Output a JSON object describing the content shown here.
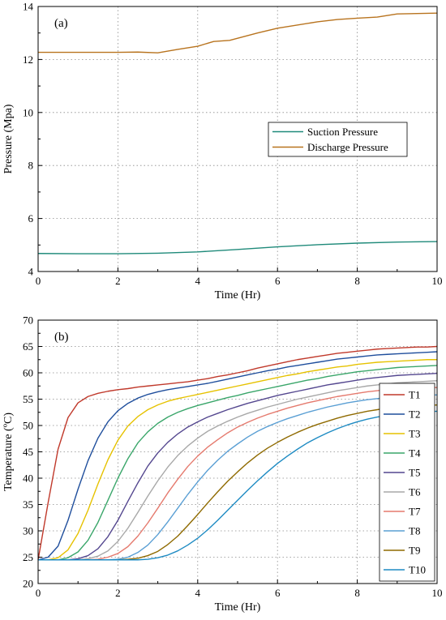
{
  "chart_data": [
    {
      "type": "line",
      "panel_label": "(a)",
      "xlabel": "Time (Hr)",
      "ylabel": "Pressure (Mpa)",
      "xlim": [
        0,
        10
      ],
      "ylim": [
        4,
        14
      ],
      "xticks": [
        0,
        2,
        4,
        6,
        8,
        10
      ],
      "yticks": [
        4,
        6,
        8,
        10,
        12,
        14
      ],
      "grid": true,
      "legend_position": "center-right",
      "series": [
        {
          "name": "Suction Pressure",
          "color": "#1f8a7a",
          "x": [
            0,
            1,
            2,
            3,
            4,
            5,
            6,
            7,
            8,
            9,
            10
          ],
          "y": [
            4.68,
            4.67,
            4.67,
            4.69,
            4.74,
            4.83,
            4.93,
            5.01,
            5.07,
            5.11,
            5.13
          ]
        },
        {
          "name": "Discharge Pressure",
          "color": "#b8731e",
          "x": [
            0,
            1,
            2,
            2.5,
            3,
            3.5,
            4,
            4.4,
            4.8,
            5.5,
            6,
            7,
            7.5,
            8,
            8.5,
            9,
            10
          ],
          "y": [
            12.27,
            12.27,
            12.27,
            12.28,
            12.25,
            12.38,
            12.5,
            12.68,
            12.72,
            13.0,
            13.18,
            13.42,
            13.51,
            13.56,
            13.6,
            13.72,
            13.75
          ]
        }
      ]
    },
    {
      "type": "line",
      "panel_label": "(b)",
      "xlabel": "Time (Hr)",
      "ylabel": "Temperature (ºC)",
      "xlim": [
        0,
        10
      ],
      "ylim": [
        20,
        70
      ],
      "xticks": [
        0,
        2,
        4,
        6,
        8,
        10
      ],
      "yticks": [
        20,
        25,
        30,
        35,
        40,
        45,
        50,
        55,
        60,
        65,
        70
      ],
      "grid": true,
      "legend_position": "right",
      "x": [
        0,
        0.25,
        0.5,
        0.75,
        1,
        1.25,
        1.5,
        1.75,
        2,
        2.25,
        2.5,
        2.75,
        3,
        3.25,
        3.5,
        3.75,
        4,
        4.25,
        4.5,
        4.75,
        5,
        5.25,
        5.5,
        5.75,
        6,
        6.25,
        6.5,
        6.75,
        7,
        7.25,
        7.5,
        7.75,
        8,
        8.25,
        8.5,
        8.75,
        9,
        9.25,
        9.5,
        9.75,
        10
      ],
      "series": [
        {
          "name": "T1",
          "color": "#c0392b",
          "y": [
            24.5,
            35.3,
            45.5,
            51.5,
            54.3,
            55.5,
            56.1,
            56.5,
            56.8,
            57.0,
            57.3,
            57.5,
            57.7,
            57.9,
            58.1,
            58.3,
            58.6,
            58.9,
            59.3,
            59.6,
            60.0,
            60.4,
            60.9,
            61.3,
            61.7,
            62.1,
            62.5,
            62.8,
            63.1,
            63.4,
            63.7,
            63.9,
            64.1,
            64.3,
            64.5,
            64.6,
            64.7,
            64.8,
            64.9,
            64.9,
            65.0
          ]
        },
        {
          "name": "T2",
          "color": "#1f4e9c",
          "y": [
            24.5,
            25.0,
            27.1,
            32.0,
            37.9,
            43.3,
            47.6,
            50.7,
            52.8,
            54.2,
            55.2,
            55.9,
            56.4,
            56.8,
            57.1,
            57.4,
            57.7,
            58.0,
            58.4,
            58.8,
            59.2,
            59.6,
            60.0,
            60.4,
            60.7,
            61.1,
            61.4,
            61.7,
            62.0,
            62.3,
            62.6,
            62.8,
            63.0,
            63.2,
            63.4,
            63.5,
            63.6,
            63.7,
            63.8,
            63.9,
            64.0
          ]
        },
        {
          "name": "T3",
          "color": "#e6c200",
          "y": [
            24.5,
            24.5,
            24.9,
            26.4,
            29.5,
            33.9,
            38.9,
            43.5,
            47.2,
            49.9,
            51.7,
            53.0,
            53.9,
            54.6,
            55.1,
            55.5,
            55.9,
            56.3,
            56.7,
            57.1,
            57.5,
            57.9,
            58.3,
            58.7,
            59.1,
            59.5,
            59.8,
            60.2,
            60.5,
            60.8,
            61.1,
            61.3,
            61.6,
            61.8,
            62.0,
            62.1,
            62.2,
            62.3,
            62.4,
            62.5,
            62.5
          ]
        },
        {
          "name": "T4",
          "color": "#3aa66a",
          "y": [
            24.5,
            24.5,
            24.5,
            24.9,
            26.0,
            28.2,
            31.6,
            35.8,
            40.0,
            43.7,
            46.7,
            48.8,
            50.4,
            51.6,
            52.5,
            53.2,
            53.8,
            54.3,
            54.8,
            55.3,
            55.7,
            56.2,
            56.6,
            57.0,
            57.4,
            57.8,
            58.2,
            58.6,
            58.9,
            59.3,
            59.6,
            59.9,
            60.2,
            60.4,
            60.6,
            60.8,
            61.0,
            61.1,
            61.2,
            61.3,
            61.4
          ]
        },
        {
          "name": "T5",
          "color": "#54478f",
          "y": [
            24.5,
            24.5,
            24.5,
            24.5,
            24.7,
            25.3,
            26.6,
            28.9,
            32.0,
            35.6,
            39.1,
            42.3,
            44.8,
            46.8,
            48.4,
            49.7,
            50.7,
            51.6,
            52.3,
            53.0,
            53.6,
            54.2,
            54.7,
            55.2,
            55.7,
            56.1,
            56.5,
            56.9,
            57.3,
            57.7,
            58.0,
            58.3,
            58.6,
            58.9,
            59.1,
            59.3,
            59.5,
            59.6,
            59.7,
            59.8,
            59.9
          ]
        },
        {
          "name": "T6",
          "color": "#a8a8a8",
          "y": [
            24.5,
            24.5,
            24.5,
            24.5,
            24.5,
            24.7,
            25.2,
            26.2,
            28.0,
            30.5,
            33.5,
            36.6,
            39.5,
            42.1,
            44.3,
            46.1,
            47.6,
            48.9,
            49.9,
            50.8,
            51.6,
            52.3,
            52.9,
            53.5,
            54.0,
            54.5,
            55.0,
            55.4,
            55.8,
            56.2,
            56.6,
            56.9,
            57.2,
            57.5,
            57.7,
            57.9,
            58.1,
            58.2,
            58.3,
            58.4,
            58.5
          ]
        },
        {
          "name": "T7",
          "color": "#e57a6e",
          "y": [
            24.5,
            24.5,
            24.5,
            24.5,
            24.5,
            24.5,
            24.6,
            25.0,
            25.7,
            27.0,
            29.0,
            31.5,
            34.3,
            37.2,
            39.8,
            42.2,
            44.2,
            45.9,
            47.3,
            48.6,
            49.7,
            50.6,
            51.4,
            52.1,
            52.7,
            53.3,
            53.8,
            54.3,
            54.7,
            55.1,
            55.5,
            55.8,
            56.1,
            56.4,
            56.6,
            56.8,
            56.9,
            57.0,
            57.1,
            57.2,
            57.2
          ]
        },
        {
          "name": "T8",
          "color": "#5a9fd4",
          "y": [
            24.5,
            24.5,
            24.5,
            24.5,
            24.5,
            24.5,
            24.5,
            24.5,
            24.6,
            25.0,
            25.9,
            27.3,
            29.3,
            31.7,
            34.3,
            36.9,
            39.3,
            41.5,
            43.4,
            45.1,
            46.5,
            47.8,
            48.9,
            49.8,
            50.6,
            51.3,
            51.9,
            52.5,
            53.0,
            53.5,
            53.9,
            54.3,
            54.6,
            54.9,
            55.1,
            55.3,
            55.5,
            55.6,
            55.7,
            55.8,
            55.8
          ]
        },
        {
          "name": "T9",
          "color": "#8f6a00",
          "y": [
            24.5,
            24.5,
            24.5,
            24.5,
            24.5,
            24.5,
            24.5,
            24.5,
            24.5,
            24.6,
            24.8,
            25.3,
            26.1,
            27.4,
            29.0,
            31.0,
            33.1,
            35.3,
            37.4,
            39.4,
            41.2,
            42.9,
            44.4,
            45.7,
            46.8,
            47.8,
            48.7,
            49.5,
            50.2,
            50.8,
            51.4,
            51.9,
            52.3,
            52.7,
            53.0,
            53.3,
            53.5,
            53.6,
            53.7,
            53.8,
            53.9
          ]
        },
        {
          "name": "T10",
          "color": "#1e8bc3",
          "y": [
            24.5,
            24.5,
            24.5,
            24.5,
            24.5,
            24.5,
            24.5,
            24.5,
            24.5,
            24.5,
            24.5,
            24.6,
            24.9,
            25.4,
            26.2,
            27.3,
            28.6,
            30.2,
            32.0,
            33.9,
            35.8,
            37.7,
            39.5,
            41.2,
            42.8,
            44.2,
            45.5,
            46.7,
            47.7,
            48.6,
            49.4,
            50.1,
            50.7,
            51.2,
            51.6,
            51.9,
            52.2,
            52.4,
            52.5,
            52.6,
            52.7
          ]
        }
      ]
    }
  ]
}
